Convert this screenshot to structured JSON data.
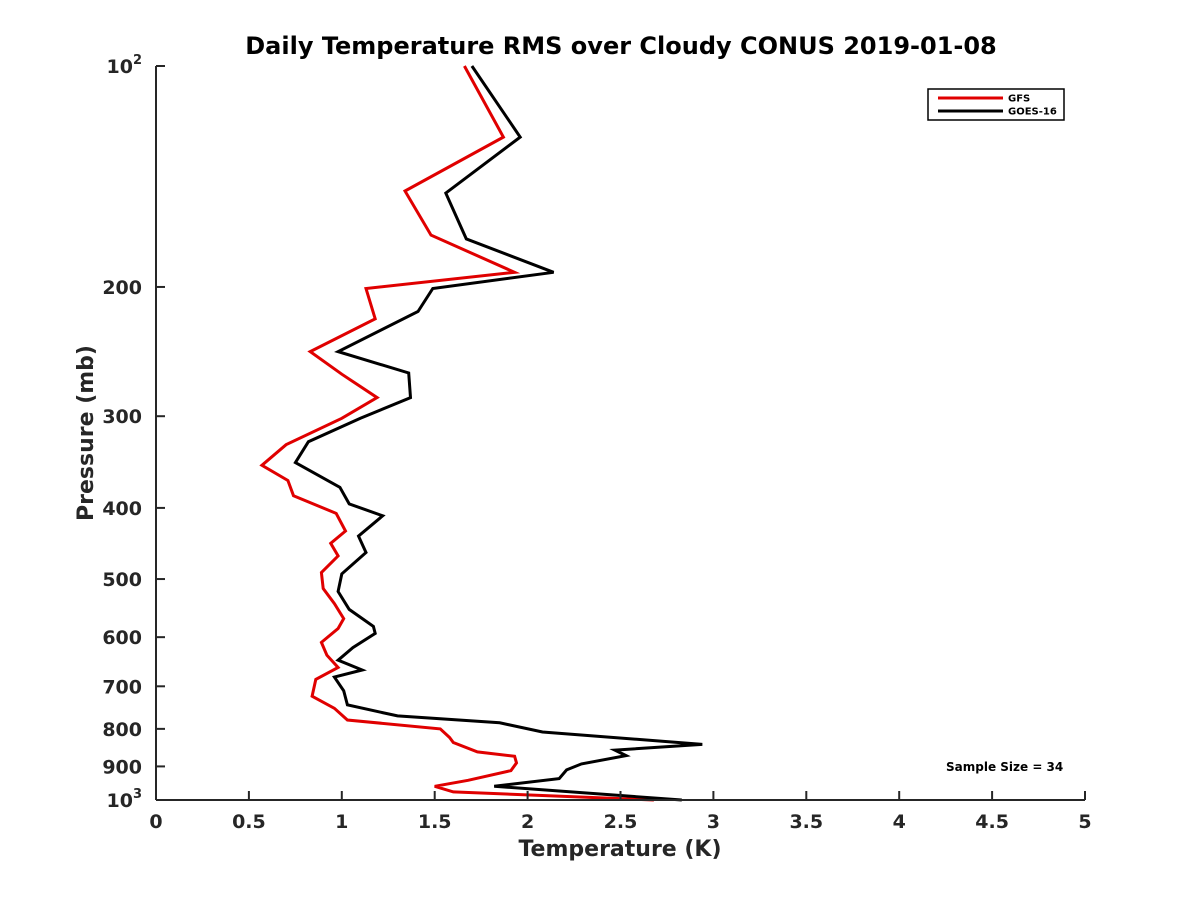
{
  "chart_data": {
    "type": "line",
    "title": "Daily Temperature RMS over Cloudy CONUS 2019-01-08",
    "xlabel": "Temperature (K)",
    "ylabel": "Pressure (mb)",
    "xlim": [
      0,
      5
    ],
    "ylim": [
      100,
      1000
    ],
    "y_scale": "log",
    "y_reversed": true,
    "x_ticks": [
      0,
      0.5,
      1,
      1.5,
      2,
      2.5,
      3,
      3.5,
      4,
      4.5,
      5
    ],
    "x_tick_labels": [
      "0",
      "0.5",
      "1",
      "1.5",
      "2",
      "2.5",
      "3",
      "3.5",
      "4",
      "4.5",
      "5"
    ],
    "y_ticks": [
      {
        "value": 100,
        "label": "10",
        "exp": "2"
      },
      {
        "value": 200,
        "label": "200"
      },
      {
        "value": 300,
        "label": "300"
      },
      {
        "value": 400,
        "label": "400"
      },
      {
        "value": 500,
        "label": "500"
      },
      {
        "value": 600,
        "label": "600"
      },
      {
        "value": 700,
        "label": "700"
      },
      {
        "value": 800,
        "label": "800"
      },
      {
        "value": 900,
        "label": "900"
      },
      {
        "value": 1000,
        "label": "10",
        "exp": "3"
      }
    ],
    "grid": false,
    "legend_position": "top-right",
    "annotation": "Sample Size = 34",
    "series": [
      {
        "name": "GFS",
        "color": "#e00000",
        "points": [
          [
            1.66,
            100
          ],
          [
            1.87,
            125
          ],
          [
            1.34,
            148
          ],
          [
            1.48,
            170
          ],
          [
            1.93,
            191
          ],
          [
            1.13,
            201
          ],
          [
            1.18,
            221
          ],
          [
            0.83,
            245
          ],
          [
            1.0,
            263
          ],
          [
            1.19,
            283
          ],
          [
            1.0,
            302
          ],
          [
            0.7,
            328
          ],
          [
            0.57,
            350
          ],
          [
            0.71,
            367
          ],
          [
            0.74,
            385
          ],
          [
            0.97,
            407
          ],
          [
            1.02,
            430
          ],
          [
            0.94,
            447
          ],
          [
            0.98,
            465
          ],
          [
            0.89,
            490
          ],
          [
            0.9,
            515
          ],
          [
            0.96,
            540
          ],
          [
            1.01,
            566
          ],
          [
            0.98,
            584
          ],
          [
            0.89,
            610
          ],
          [
            0.92,
            635
          ],
          [
            0.98,
            660
          ],
          [
            0.86,
            685
          ],
          [
            0.84,
            722
          ],
          [
            0.96,
            750
          ],
          [
            1.03,
            778
          ],
          [
            1.53,
            800
          ],
          [
            1.58,
            822
          ],
          [
            1.6,
            835
          ],
          [
            1.73,
            860
          ],
          [
            1.93,
            872
          ],
          [
            1.94,
            890
          ],
          [
            1.91,
            912
          ],
          [
            1.68,
            940
          ],
          [
            1.5,
            958
          ],
          [
            1.6,
            975
          ],
          [
            2.68,
            1000
          ]
        ]
      },
      {
        "name": "GOES-16",
        "color": "#000000",
        "points": [
          [
            1.7,
            100
          ],
          [
            1.96,
            125
          ],
          [
            1.56,
            149
          ],
          [
            1.67,
            172
          ],
          [
            2.14,
            191
          ],
          [
            1.49,
            201
          ],
          [
            1.41,
            216
          ],
          [
            0.98,
            245
          ],
          [
            1.36,
            262
          ],
          [
            1.37,
            283
          ],
          [
            1.1,
            302
          ],
          [
            0.82,
            325
          ],
          [
            0.75,
            347
          ],
          [
            0.99,
            375
          ],
          [
            1.04,
            395
          ],
          [
            1.22,
            410
          ],
          [
            1.09,
            437
          ],
          [
            1.13,
            460
          ],
          [
            1.0,
            492
          ],
          [
            0.98,
            520
          ],
          [
            1.04,
            550
          ],
          [
            1.17,
            580
          ],
          [
            1.18,
            593
          ],
          [
            1.06,
            620
          ],
          [
            0.98,
            645
          ],
          [
            1.11,
            665
          ],
          [
            0.96,
            680
          ],
          [
            1.01,
            710
          ],
          [
            1.03,
            742
          ],
          [
            1.3,
            768
          ],
          [
            1.85,
            785
          ],
          [
            2.08,
            808
          ],
          [
            2.94,
            840
          ],
          [
            2.47,
            855
          ],
          [
            2.53,
            870
          ],
          [
            2.29,
            893
          ],
          [
            2.21,
            910
          ],
          [
            2.17,
            935
          ],
          [
            1.82,
            958
          ],
          [
            2.83,
            1000
          ]
        ]
      }
    ]
  }
}
